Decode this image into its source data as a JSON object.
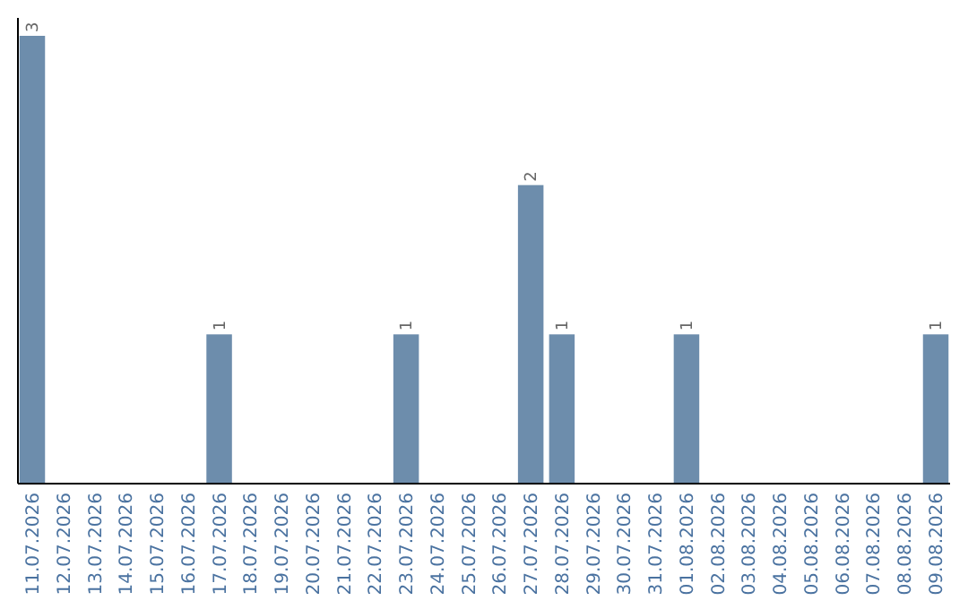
{
  "chart_data": {
    "type": "bar",
    "categories": [
      "11.07.2026",
      "12.07.2026",
      "13.07.2026",
      "14.07.2026",
      "15.07.2026",
      "16.07.2026",
      "17.07.2026",
      "18.07.2026",
      "19.07.2026",
      "20.07.2026",
      "21.07.2026",
      "22.07.2026",
      "23.07.2026",
      "24.07.2026",
      "25.07.2026",
      "26.07.2026",
      "27.07.2026",
      "28.07.2026",
      "29.07.2026",
      "30.07.2026",
      "31.07.2026",
      "01.08.2026",
      "02.08.2026",
      "03.08.2026",
      "04.08.2026",
      "05.08.2026",
      "06.08.2026",
      "07.08.2026",
      "08.08.2026",
      "09.08.2026"
    ],
    "values": [
      3,
      0,
      0,
      0,
      0,
      0,
      1,
      0,
      0,
      0,
      0,
      0,
      1,
      0,
      0,
      0,
      2,
      1,
      0,
      0,
      0,
      1,
      0,
      0,
      0,
      0,
      0,
      0,
      0,
      1
    ],
    "value_labels": [
      "3",
      null,
      null,
      null,
      null,
      null,
      "1",
      null,
      null,
      null,
      null,
      null,
      "1",
      null,
      null,
      null,
      "2",
      "1",
      null,
      null,
      null,
      "1",
      null,
      null,
      null,
      null,
      null,
      null,
      null,
      "1"
    ],
    "color": "#6d8dac"
  }
}
